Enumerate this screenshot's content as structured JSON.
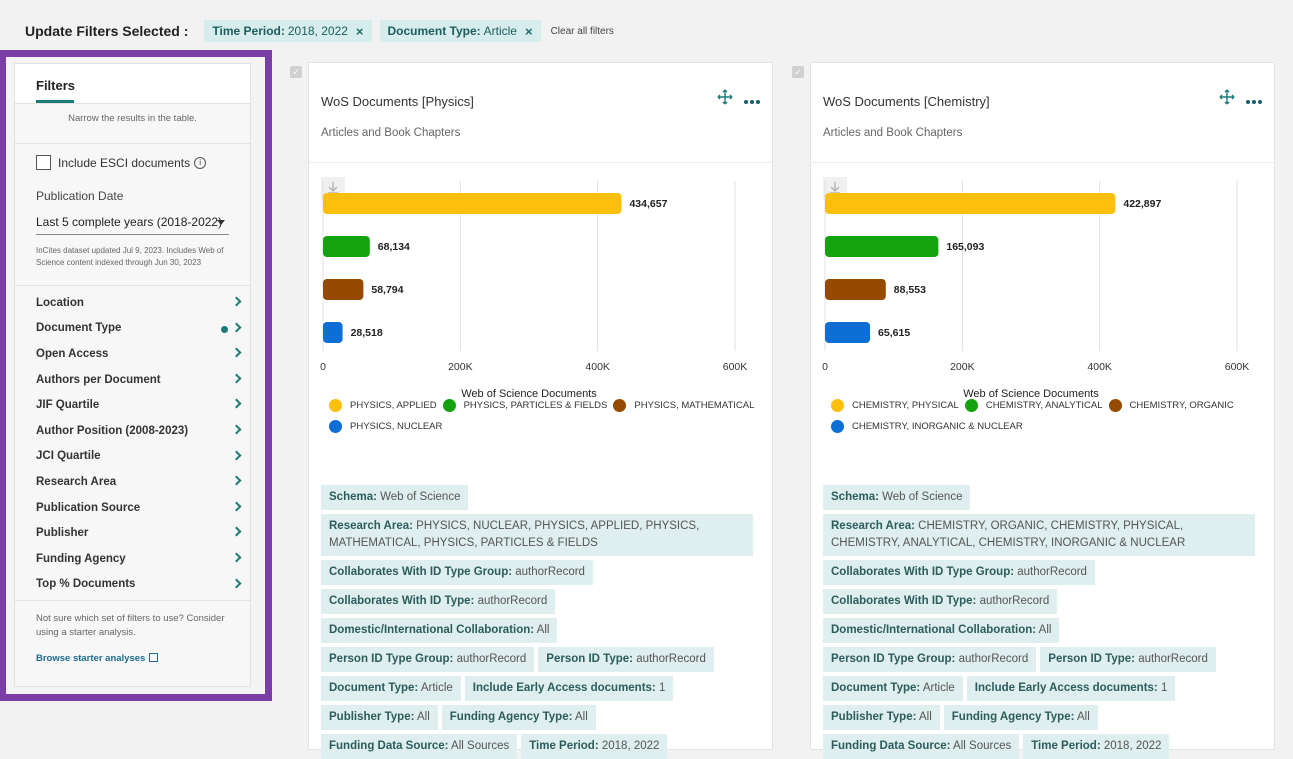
{
  "topbar": {
    "title": "Update Filters Selected :",
    "chips": [
      {
        "key": "Time Period:",
        "value": "2018, 2022"
      },
      {
        "key": "Document Type:",
        "value": "Article"
      }
    ],
    "clear_all": "Clear all filters",
    "chip_close_glyph": "×"
  },
  "panel": {
    "tab": "Filters",
    "narrow_text": "Narrow the results in the table.",
    "esci_label": "Include ESCI documents",
    "info_glyph": "i",
    "pub_date_label": "Publication Date",
    "pub_date_value": "Last 5 complete years (2018-2022)",
    "dataset_note": "InCites dataset updated Jul 9, 2023. Includes Web of Science content indexed through Jun 30, 2023",
    "filters": [
      "Location",
      "Document Type",
      "Open Access",
      "Authors per Document",
      "JIF Quartile",
      "Author Position (2008-2023)",
      "JCI Quartile",
      "Research Area",
      "Publication Source",
      "Publisher",
      "Funding Agency",
      "Top % Documents"
    ],
    "starter_note": "Not sure which set of filters to use? Consider using a starter analysis.",
    "starter_link": "Browse starter analyses"
  },
  "colors": {
    "accent": "#1b7a7a",
    "panel_highlight": "#7a3ea6",
    "series": [
      "#fbbf0c",
      "#13a30f",
      "#964a00",
      "#0d6fd6"
    ]
  },
  "cards": [
    {
      "title": "WoS Documents [Physics]",
      "subtitle": "Articles and Book Chapters",
      "value_labels": [
        "434,657",
        "68,134",
        "58,794",
        "28,518"
      ],
      "tags": [
        {
          "k": "Schema:",
          "v": "Web of Science"
        },
        {
          "k": "Research Area:",
          "v": "PHYSICS, NUCLEAR, PHYSICS, APPLIED, PHYSICS, MATHEMATICAL, PHYSICS, PARTICLES & FIELDS",
          "wide": true
        },
        {
          "k": "Collaborates With ID Type Group:",
          "v": "authorRecord"
        },
        {
          "k": "Collaborates With ID Type:",
          "v": "authorRecord"
        },
        {
          "k": "Domestic/International Collaboration:",
          "v": "All"
        },
        {
          "k": "Person ID Type Group:",
          "v": "authorRecord"
        },
        {
          "k": "Person ID Type:",
          "v": "authorRecord"
        },
        {
          "k": "Document Type:",
          "v": "Article"
        },
        {
          "k": "Include Early Access documents:",
          "v": "1"
        },
        {
          "k": "Publisher Type:",
          "v": "All"
        },
        {
          "k": "Funding Agency Type:",
          "v": "All"
        },
        {
          "k": "Funding Data Source:",
          "v": "All Sources"
        },
        {
          "k": "Time Period:",
          "v": "2018, 2022"
        }
      ]
    },
    {
      "title": "WoS Documents [Chemistry]",
      "subtitle": "Articles and Book Chapters",
      "value_labels": [
        "422,897",
        "165,093",
        "88,553",
        "65,615"
      ],
      "tags": [
        {
          "k": "Schema:",
          "v": "Web of Science"
        },
        {
          "k": "Research Area:",
          "v": "CHEMISTRY, ORGANIC, CHEMISTRY, PHYSICAL, CHEMISTRY, ANALYTICAL, CHEMISTRY, INORGANIC & NUCLEAR",
          "wide": true
        },
        {
          "k": "Collaborates With ID Type Group:",
          "v": "authorRecord"
        },
        {
          "k": "Collaborates With ID Type:",
          "v": "authorRecord"
        },
        {
          "k": "Domestic/International Collaboration:",
          "v": "All"
        },
        {
          "k": "Person ID Type Group:",
          "v": "authorRecord"
        },
        {
          "k": "Person ID Type:",
          "v": "authorRecord"
        },
        {
          "k": "Document Type:",
          "v": "Article"
        },
        {
          "k": "Include Early Access documents:",
          "v": "1"
        },
        {
          "k": "Publisher Type:",
          "v": "All"
        },
        {
          "k": "Funding Agency Type:",
          "v": "All"
        },
        {
          "k": "Funding Data Source:",
          "v": "All Sources"
        },
        {
          "k": "Time Period:",
          "v": "2018, 2022"
        }
      ]
    }
  ],
  "chart_data": [
    {
      "type": "bar",
      "orientation": "horizontal",
      "categories": [
        "PHYSICS, APPLIED",
        "PHYSICS, PARTICLES & FIELDS",
        "PHYSICS, MATHEMATICAL",
        "PHYSICS, NUCLEAR"
      ],
      "values": [
        434657,
        68134,
        58794,
        28518
      ],
      "xlabel": "Web of Science Documents",
      "xlim": [
        0,
        600000
      ],
      "xticks": [
        "0",
        "200K",
        "400K",
        "600K"
      ],
      "grid": true,
      "legend": "bottom"
    },
    {
      "type": "bar",
      "orientation": "horizontal",
      "categories": [
        "CHEMISTRY, PHYSICAL",
        "CHEMISTRY, ANALYTICAL",
        "CHEMISTRY, ORGANIC",
        "CHEMISTRY, INORGANIC & NUCLEAR"
      ],
      "values": [
        422897,
        165093,
        88553,
        65615
      ],
      "xlabel": "Web of Science Documents",
      "xlim": [
        0,
        600000
      ],
      "xticks": [
        "0",
        "200K",
        "400K",
        "600K"
      ],
      "grid": true,
      "legend": "bottom"
    }
  ]
}
